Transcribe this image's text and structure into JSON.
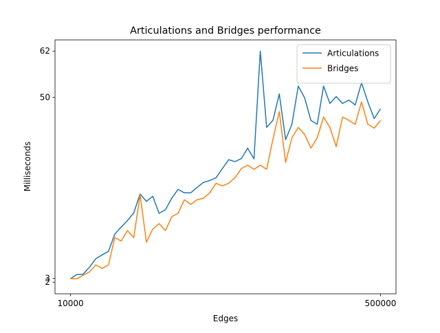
{
  "chart_data": {
    "type": "line",
    "title": "Articulations and Bridges performance",
    "xlabel": "Edges",
    "ylabel": "Milliseconds",
    "x": [
      10000,
      20000,
      30000,
      40000,
      50000,
      60000,
      70000,
      80000,
      90000,
      100000,
      110000,
      120000,
      130000,
      140000,
      150000,
      160000,
      170000,
      180000,
      190000,
      200000,
      210000,
      220000,
      230000,
      240000,
      250000,
      260000,
      270000,
      280000,
      290000,
      300000,
      310000,
      320000,
      330000,
      340000,
      350000,
      360000,
      370000,
      380000,
      390000,
      400000,
      410000,
      420000,
      430000,
      440000,
      450000,
      460000,
      470000,
      480000,
      490000,
      500000
    ],
    "series": [
      {
        "name": "Articulations",
        "color": "#1f77b4",
        "values": [
          2.9,
          4.0,
          4.1,
          5.9,
          8.1,
          9.1,
          10,
          14.5,
          16.3,
          18,
          20,
          24.9,
          23,
          24.3,
          19.9,
          20.8,
          23.8,
          26.1,
          25.2,
          25.2,
          26.6,
          27.9,
          28.4,
          29.1,
          31.5,
          33.8,
          33.3,
          34.1,
          36.8,
          34,
          62,
          42.2,
          44,
          50.9,
          39,
          43,
          52.9,
          49.9,
          44,
          43,
          52.9,
          48.4,
          50.2,
          48.4,
          49.3,
          48,
          53.8,
          48.8,
          44.5,
          47
        ]
      },
      {
        "name": "Bridges",
        "color": "#ff7f0e",
        "values": [
          2.9,
          2.9,
          3.8,
          4.7,
          6.5,
          5.6,
          6.5,
          13.6,
          12.7,
          15.4,
          13.6,
          24.7,
          12.4,
          15.8,
          17.2,
          15.4,
          19,
          19.9,
          23.4,
          22.2,
          23.4,
          23.8,
          25.2,
          27.7,
          27,
          27.7,
          29.1,
          31.5,
          32.4,
          31.3,
          32.4,
          31.3,
          39.1,
          46.3,
          33.1,
          39.5,
          42.2,
          40.4,
          36.8,
          39.5,
          44.9,
          42.2,
          37.2,
          44.9,
          44,
          43,
          48.8,
          43,
          42,
          44
        ]
      }
    ],
    "xlim": [
      -14500,
      524500
    ],
    "ylim": [
      -1,
      64.9
    ],
    "xticks": [
      10000,
      500000
    ],
    "yticks": [
      2,
      3,
      50,
      62
    ],
    "legend": "upper right",
    "grid": false
  }
}
